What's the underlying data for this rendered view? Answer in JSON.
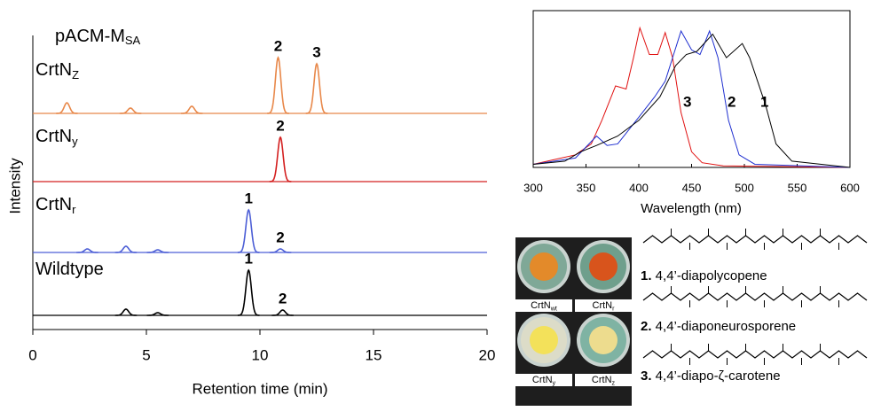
{
  "chart_data": [
    {
      "type": "chromatogram",
      "title": "pACM-M",
      "title_sub": "SA",
      "xlabel": "Retention time (min)",
      "ylabel": "Intensity",
      "xlim": [
        0,
        20
      ],
      "xticks": [
        0,
        5,
        10,
        15,
        20
      ],
      "ylim": [
        0,
        80
      ],
      "series": [
        {
          "name": "CrtN",
          "name_sub": "Z",
          "color": "#e8884a",
          "x": [
            1.5,
            4.3,
            7.0,
            10.8,
            12.5
          ],
          "values": [
            12,
            6,
            8,
            63,
            56
          ],
          "peak_labels": [
            null,
            null,
            null,
            "2",
            "3"
          ],
          "peak_label_colors": [
            "#1f2fbf",
            "#d42020"
          ]
        },
        {
          "name": "CrtN",
          "name_sub": "y",
          "color": "#d42020",
          "x": [
            10.9
          ],
          "values": [
            50
          ],
          "peak_labels": [
            "2"
          ],
          "peak_label_colors": [
            "#1f2fbf"
          ]
        },
        {
          "name": "CrtN",
          "name_sub": "r",
          "color": "#4d5fd6",
          "x": [
            2.4,
            4.1,
            5.5,
            9.5,
            10.9
          ],
          "values": [
            4,
            7,
            3,
            48,
            4
          ],
          "peak_labels": [
            null,
            null,
            null,
            "1",
            "2"
          ],
          "peak_label_colors": [
            "#000000",
            "#1f2fbf"
          ]
        },
        {
          "name": "Wildtype",
          "name_sub": null,
          "color": "#000000",
          "x": [
            4.1,
            5.5,
            9.5,
            11.0
          ],
          "values": [
            7,
            3,
            51,
            6
          ],
          "peak_labels": [
            null,
            null,
            "1",
            "2"
          ],
          "peak_label_colors": [
            "#000000",
            "#1f2fbf"
          ]
        }
      ]
    },
    {
      "type": "line",
      "xlabel": "Wavelength (nm)",
      "xlim": [
        300,
        600
      ],
      "xticks": [
        300,
        350,
        400,
        450,
        500,
        550,
        600
      ],
      "ylim": [
        0,
        1
      ],
      "series": [
        {
          "name": "3",
          "color": "#e01010",
          "x": [
            300,
            340,
            355,
            365,
            378,
            388,
            395,
            401,
            410,
            418,
            425,
            432,
            440,
            450,
            460,
            480,
            600
          ],
          "values": [
            0.02,
            0.08,
            0.15,
            0.3,
            0.52,
            0.5,
            0.7,
            0.89,
            0.72,
            0.72,
            0.86,
            0.7,
            0.35,
            0.1,
            0.03,
            0.01,
            0
          ]
        },
        {
          "name": "2",
          "color": "#1f2fd0",
          "x": [
            300,
            340,
            360,
            370,
            380,
            400,
            415,
            425,
            440,
            450,
            458,
            467,
            475,
            485,
            495,
            510,
            600
          ],
          "values": [
            0.02,
            0.06,
            0.2,
            0.14,
            0.15,
            0.32,
            0.45,
            0.55,
            0.87,
            0.75,
            0.72,
            0.87,
            0.7,
            0.3,
            0.08,
            0.02,
            0
          ]
        },
        {
          "name": "1",
          "color": "#000000",
          "x": [
            300,
            330,
            345,
            360,
            380,
            400,
            420,
            435,
            445,
            455,
            470,
            483,
            498,
            505,
            520,
            530,
            545,
            600
          ],
          "values": [
            0.02,
            0.04,
            0.1,
            0.14,
            0.2,
            0.3,
            0.45,
            0.65,
            0.72,
            0.74,
            0.85,
            0.7,
            0.79,
            0.7,
            0.4,
            0.15,
            0.04,
            0
          ]
        }
      ]
    }
  ],
  "photos": [
    {
      "name": "CrtN",
      "sub": "wt"
    },
    {
      "name": "CrtN",
      "sub": "r"
    },
    {
      "name": "CrtN",
      "sub": "y"
    },
    {
      "name": "CrtN",
      "sub": "z"
    }
  ],
  "structures": [
    {
      "number": "1.",
      "name": " 4,4’-diapolycopene",
      "color": "#000000"
    },
    {
      "number": "2.",
      "name": " 4,4’-diaponeurosporene",
      "color": "#1f2fd0"
    },
    {
      "number": "3.",
      "name": " 4,4’-diapo-ζ-carotene",
      "color": "#e01010"
    }
  ]
}
